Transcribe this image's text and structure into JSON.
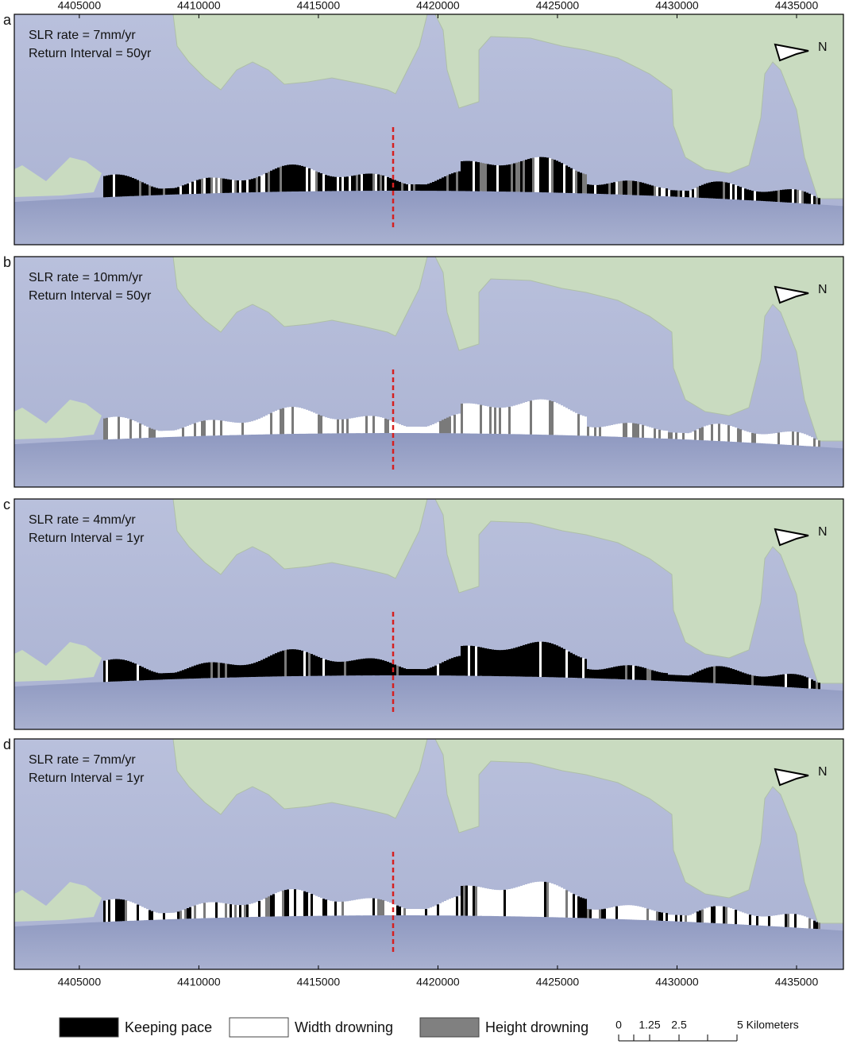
{
  "axis": {
    "xlim": [
      4402280,
      4436960
    ],
    "xticks": [
      4405000,
      4410000,
      4415000,
      4420000,
      4425000,
      4430000,
      4435000
    ]
  },
  "panels": [
    {
      "label": "a",
      "lines": [
        "SLR rate = 7mm/yr",
        "Return Interval = 50yr"
      ],
      "north": "N"
    },
    {
      "label": "b",
      "lines": [
        "SLR rate = 10mm/yr",
        "Return Interval = 50yr"
      ],
      "north": "N"
    },
    {
      "label": "c",
      "lines": [
        "SLR rate = 4mm/yr",
        "Return Interval = 1yr"
      ],
      "north": "N"
    },
    {
      "label": "d",
      "lines": [
        "SLR rate = 7mm/yr",
        "Return Interval = 1yr"
      ],
      "north": "N"
    }
  ],
  "legend": [
    {
      "label": "Keeping pace",
      "color": "#000000"
    },
    {
      "label": "Width drowning",
      "color": "#ffffff"
    },
    {
      "label": "Height drowning",
      "color": "#808080"
    }
  ],
  "scale_bar": [
    "0",
    "1.25",
    "2.5",
    "5 Kilometers"
  ]
}
